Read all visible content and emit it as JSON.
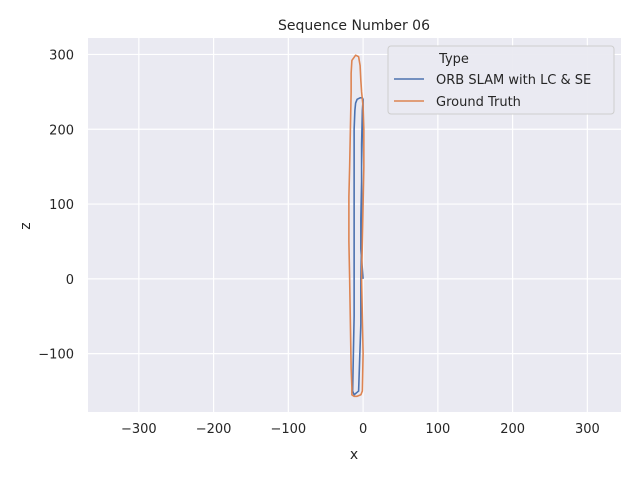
{
  "chart_data": {
    "type": "line",
    "title": "Sequence Number 06",
    "xlabel": "x",
    "ylabel": "z",
    "xlim": [
      -368,
      345
    ],
    "ylim": [
      -178,
      322
    ],
    "xticks": [
      -300,
      -200,
      -100,
      0,
      100,
      200,
      300
    ],
    "yticks": [
      -100,
      0,
      100,
      200,
      300
    ],
    "grid": true,
    "legend": {
      "title": "Type",
      "placement": "top-right"
    },
    "colors": {
      "background": "#eaeaf2",
      "grid": "#ffffff"
    },
    "series": [
      {
        "name": "ORB SLAM with LC & SE",
        "color": "#4c72b0",
        "x": [
          0,
          0,
          -1,
          -2,
          -2,
          -2,
          -3,
          -3,
          -6,
          -12,
          -14,
          -13,
          -12,
          -12,
          -12,
          -12,
          -12,
          -12,
          -12,
          -11,
          -10,
          -8,
          -4,
          -1,
          0,
          -1,
          -2,
          -2,
          -3,
          -3,
          0
        ],
        "z": [
          240,
          220,
          200,
          150,
          100,
          50,
          0,
          -60,
          -150,
          -155,
          -150,
          -100,
          -50,
          0,
          40,
          80,
          120,
          160,
          200,
          225,
          235,
          240,
          242,
          242,
          240,
          225,
          180,
          130,
          80,
          40,
          0
        ]
      },
      {
        "name": "Ground Truth",
        "color": "#dd8452",
        "x": [
          -2,
          -1,
          0,
          1,
          1,
          0,
          -2,
          -3,
          -4,
          -6,
          -10,
          -15,
          -16,
          -16,
          -17,
          -18,
          -19,
          -19,
          -18,
          -17,
          -16,
          -15,
          -15,
          -12,
          -8,
          -3,
          -1,
          0,
          -1,
          -2
        ],
        "z": [
          0,
          50,
          100,
          150,
          200,
          230,
          250,
          265,
          285,
          297,
          299,
          292,
          275,
          250,
          200,
          150,
          110,
          50,
          0,
          -60,
          -120,
          -145,
          -155,
          -157,
          -157,
          -155,
          -150,
          -100,
          -50,
          0
        ]
      }
    ]
  }
}
